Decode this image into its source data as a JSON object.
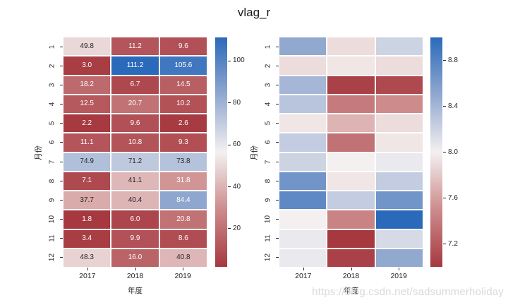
{
  "title": "vlag_r",
  "watermark": "https://blog.csdn.net/sadsummerholiday",
  "colors": {
    "background": "#ffffff",
    "tick_text": "#262626",
    "annotation_dark": "#262626",
    "annotation_light": "#ffffff",
    "watermark_text": "#d9d9d9",
    "colormap_name": "vlag_r",
    "colormap_anchors": [
      {
        "t": 0.0,
        "rgb": [
          166,
          57,
          64
        ]
      },
      {
        "t": 0.25,
        "rgb": [
          205,
          139,
          140
        ]
      },
      {
        "t": 0.5,
        "rgb": [
          244,
          240,
          240
        ]
      },
      {
        "t": 0.75,
        "rgb": [
          145,
          168,
          207
        ]
      },
      {
        "t": 1.0,
        "rgb": [
          43,
          106,
          186
        ]
      }
    ]
  },
  "chart_data": [
    {
      "type": "heatmap",
      "name": "left-annotated-heatmap",
      "xlabel": "年度",
      "ylabel": "月份",
      "x_categories": [
        "2017",
        "2018",
        "2019"
      ],
      "y_categories": [
        "1",
        "2",
        "3",
        "4",
        "5",
        "6",
        "7",
        "8",
        "9",
        "10",
        "11",
        "12"
      ],
      "annotated": true,
      "values_by_row": [
        [
          49.8,
          11.2,
          9.6
        ],
        [
          3.0,
          111.2,
          105.6
        ],
        [
          18.2,
          6.7,
          14.5
        ],
        [
          12.5,
          20.7,
          10.2
        ],
        [
          2.2,
          9.6,
          2.6
        ],
        [
          11.1,
          10.8,
          9.3
        ],
        [
          74.9,
          71.2,
          73.8
        ],
        [
          7.1,
          41.1,
          31.8
        ],
        [
          37.7,
          40.4,
          84.4
        ],
        [
          1.8,
          6.0,
          20.8
        ],
        [
          3.4,
          9.9,
          8.6
        ],
        [
          48.3,
          16.0,
          40.8
        ]
      ],
      "vmin": 1.8,
      "vmax": 111.2,
      "colorbar_ticks": [
        100,
        80,
        60,
        40,
        20
      ],
      "colorbar_tick_labels": [
        "100",
        "80",
        "60",
        "40",
        "20"
      ],
      "legend_position": "right-colorbar",
      "grid_lines": "white-separators"
    },
    {
      "type": "heatmap",
      "name": "right-plain-heatmap",
      "xlabel": "年度",
      "ylabel": "月份",
      "x_categories": [
        "2017",
        "2018",
        "2019"
      ],
      "y_categories": [
        "1",
        "2",
        "3",
        "4",
        "5",
        "6",
        "7",
        "8",
        "9",
        "10",
        "11",
        "12"
      ],
      "annotated": false,
      "values_estimated_from_color": true,
      "values_by_row": [
        [
          8.5,
          7.9,
          8.2
        ],
        [
          7.9,
          7.95,
          7.9
        ],
        [
          8.4,
          7.05,
          7.1
        ],
        [
          8.3,
          7.4,
          7.5
        ],
        [
          7.95,
          7.7,
          7.9
        ],
        [
          8.25,
          7.35,
          7.95
        ],
        [
          8.2,
          8.0,
          8.05
        ],
        [
          8.65,
          7.95,
          8.25
        ],
        [
          8.75,
          8.25,
          8.65
        ],
        [
          8.0,
          7.45,
          9.0
        ],
        [
          8.05,
          7.0,
          8.15
        ],
        [
          8.05,
          7.05,
          8.5
        ]
      ],
      "vmin": 7.0,
      "vmax": 9.0,
      "colorbar_ticks": [
        8.8,
        8.4,
        8.0,
        7.6,
        7.2
      ],
      "colorbar_tick_labels": [
        "8.8",
        "8.4",
        "8.0",
        "7.6",
        "7.2"
      ],
      "legend_position": "right-colorbar",
      "grid_lines": "white-separators"
    }
  ]
}
